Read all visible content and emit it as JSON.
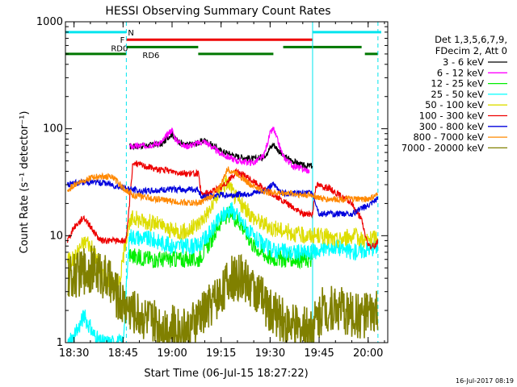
{
  "chart_data": {
    "type": "line",
    "title": "HESSI Observing Summary Count Rates",
    "xlabel": "Start Time (06-Jul-15 18:27:22)",
    "ylabel": "Count Rate (s⁻¹ detector⁻¹)",
    "y_scale": "log",
    "ylim": [
      1,
      1000
    ],
    "xlim": [
      "18:27:22",
      "20:06:00"
    ],
    "x_ticks": [
      "18:30",
      "18:45",
      "19:00",
      "19:15",
      "19:30",
      "19:45",
      "20:00"
    ],
    "y_ticks": [
      "1",
      "10",
      "100",
      "1000"
    ],
    "grid": false,
    "legend_position": "right",
    "legend_header": [
      "Det 1,3,5,6,7,9,",
      "FDecim 2, Att 0"
    ],
    "footer_timestamp": "16-Jul-2017 08:19",
    "background_color": "#ffffff",
    "flags": [
      {
        "label": "N",
        "color": "#00e5ee",
        "level": 800,
        "intervals": [
          [
            "18:27:22",
            "18:46:00"
          ],
          [
            "19:43:00",
            "20:04:00"
          ]
        ]
      },
      {
        "label": "F",
        "color": "#ee0000",
        "level": 680,
        "intervals": [
          [
            "18:46:00",
            "19:43:00"
          ]
        ]
      },
      {
        "label": "RD0",
        "color": "#007700",
        "level": 580,
        "intervals": [
          [
            "18:46:00",
            "19:08:00"
          ],
          [
            "19:34:00",
            "19:58:00"
          ]
        ]
      },
      {
        "label": "RD6",
        "color": "#007700",
        "level": 500,
        "intervals": [
          [
            "18:27:22",
            "18:46:00"
          ],
          [
            "19:08:00",
            "19:31:00"
          ],
          [
            "19:59:00",
            "20:03:00"
          ]
        ]
      }
    ],
    "vertical_markers": [
      {
        "x": "18:46:00",
        "style": "dashed",
        "color": "#00e5ee"
      },
      {
        "x": "19:43:00",
        "style": "solid",
        "color": "#00e5ee"
      },
      {
        "x": "20:03:00",
        "style": "dashed",
        "color": "#00e5ee"
      }
    ],
    "series": [
      {
        "name": "3 - 6 keV",
        "color": "#000000",
        "x": [
          "18:47",
          "18:53",
          "18:57",
          "18:59",
          "19:00",
          "19:01",
          "19:04",
          "19:07",
          "19:10",
          "19:15",
          "19:20",
          "19:25",
          "19:28",
          "19:31",
          "19:34",
          "19:37",
          "19:40",
          "19:43"
        ],
        "values": [
          68,
          70,
          72,
          85,
          90,
          80,
          70,
          72,
          78,
          62,
          55,
          52,
          55,
          72,
          55,
          50,
          45,
          45
        ]
      },
      {
        "name": "6 - 12 keV",
        "color": "#ff00ff",
        "x": [
          "18:47",
          "18:53",
          "18:57",
          "18:59",
          "19:00",
          "19:01",
          "19:04",
          "19:07",
          "19:10",
          "19:15",
          "19:20",
          "19:25",
          "19:28",
          "19:30",
          "19:31",
          "19:34",
          "19:37",
          "19:40",
          "19:42"
        ],
        "values": [
          68,
          70,
          75,
          92,
          98,
          80,
          68,
          72,
          76,
          58,
          50,
          48,
          55,
          90,
          100,
          55,
          45,
          42,
          40
        ]
      },
      {
        "name": "12 - 25 keV",
        "color": "#00ee00",
        "x": [
          "18:47",
          "18:55",
          "19:00",
          "19:05",
          "19:08",
          "19:12",
          "19:15",
          "19:18",
          "19:21",
          "19:25",
          "19:30",
          "19:35",
          "19:40",
          "19:43"
        ],
        "values": [
          6.5,
          6,
          6,
          6,
          6,
          9,
          14,
          16,
          13,
          8,
          6.2,
          6,
          6,
          6
        ]
      },
      {
        "name": "25 - 50 keV",
        "color": "#00ffff",
        "x": [
          "18:28",
          "18:30",
          "18:33",
          "18:36",
          "18:38",
          "18:40",
          "18:42",
          "18:44",
          "18:45",
          "18:47",
          "18:55",
          "19:00",
          "19:05",
          "19:08",
          "19:12",
          "19:15",
          "19:18",
          "19:21",
          "19:25",
          "19:30",
          "19:35",
          "19:40",
          "19:43",
          "19:46",
          "19:50",
          "19:55",
          "20:00",
          "20:03"
        ],
        "values": [
          1,
          1.1,
          1.8,
          1.2,
          1,
          1,
          1,
          1,
          1,
          10,
          9,
          8,
          8,
          8,
          11,
          15,
          18,
          14,
          9.5,
          7.5,
          7,
          7,
          7,
          7.5,
          8,
          7,
          7.5,
          8
        ]
      },
      {
        "name": "50 - 100 keV",
        "color": "#dddd00",
        "x": [
          "18:28",
          "18:30",
          "18:32",
          "18:34",
          "18:36",
          "18:38",
          "18:40",
          "18:42",
          "18:44",
          "18:46",
          "18:48",
          "18:50",
          "18:55",
          "19:00",
          "19:05",
          "19:08",
          "19:12",
          "19:15",
          "19:17",
          "19:19",
          "19:22",
          "19:26",
          "19:30",
          "19:35",
          "19:40",
          "19:43",
          "19:46",
          "19:50",
          "19:55",
          "20:00",
          "20:03"
        ],
        "values": [
          6,
          6,
          8,
          9,
          7,
          5,
          4,
          3.5,
          3.8,
          10,
          15,
          14,
          13,
          11,
          11,
          13,
          18,
          28,
          32,
          24,
          18,
          14,
          12,
          11,
          10,
          10,
          10,
          9,
          10,
          9,
          10
        ]
      },
      {
        "name": "100 - 300 keV",
        "color": "#ee0000",
        "x": [
          "18:28",
          "18:30",
          "18:33",
          "18:36",
          "18:38",
          "18:42",
          "18:46",
          "18:48",
          "18:55",
          "19:00",
          "19:05",
          "19:08",
          "19:09",
          "19:15",
          "19:20",
          "19:25",
          "19:28",
          "19:31",
          "19:35",
          "19:40",
          "19:43",
          "19:44",
          "19:48",
          "19:55",
          "19:58",
          "20:00",
          "20:02",
          "20:03"
        ],
        "values": [
          9,
          12,
          15,
          11,
          9,
          9,
          9,
          48,
          42,
          40,
          38,
          38,
          24,
          28,
          40,
          32,
          28,
          24,
          20,
          16,
          16,
          30,
          28,
          20,
          14,
          8,
          8,
          9
        ]
      },
      {
        "name": "300 - 800 keV",
        "color": "#0000dd",
        "x": [
          "18:28",
          "18:30",
          "18:35",
          "18:40",
          "18:45",
          "18:46",
          "18:50",
          "19:00",
          "19:08",
          "19:09",
          "19:15",
          "19:18",
          "19:25",
          "19:28",
          "19:31",
          "19:34",
          "19:40",
          "19:43",
          "19:45",
          "19:50",
          "19:55",
          "19:58",
          "20:00",
          "20:03"
        ],
        "values": [
          30,
          31,
          32,
          31,
          28,
          28,
          26,
          27,
          27,
          23,
          24,
          24,
          25,
          26,
          30,
          25,
          25,
          25,
          16,
          16,
          16,
          18,
          19,
          22
        ]
      },
      {
        "name": "800 - 7000 keV",
        "color": "#ff8800",
        "x": [
          "18:28",
          "18:30",
          "18:34",
          "18:38",
          "18:42",
          "18:45",
          "18:48",
          "18:55",
          "19:00",
          "19:08",
          "19:12",
          "19:15",
          "19:17",
          "19:20",
          "19:24",
          "19:28",
          "19:32",
          "19:36",
          "19:40",
          "19:43",
          "19:46",
          "19:50",
          "19:55",
          "20:00",
          "20:03"
        ],
        "values": [
          26,
          30,
          34,
          36,
          35,
          28,
          24,
          22,
          21,
          20,
          23,
          30,
          42,
          38,
          30,
          26,
          25,
          25,
          24,
          24,
          22,
          22,
          22,
          22,
          24
        ]
      },
      {
        "name": "7000 - 20000 keV",
        "color": "#808000",
        "x": [
          "18:28",
          "18:32",
          "18:36",
          "18:40",
          "18:44",
          "18:48",
          "18:55",
          "19:00",
          "19:05",
          "19:10",
          "19:15",
          "19:18",
          "19:22",
          "19:26",
          "19:30",
          "19:35",
          "19:40",
          "19:43",
          "19:46",
          "19:50",
          "19:55",
          "20:00",
          "20:03"
        ],
        "values": [
          4,
          4.5,
          5,
          4,
          2.5,
          2,
          1.5,
          1.4,
          1.3,
          2,
          3,
          4,
          4,
          3,
          2,
          1.5,
          1.3,
          1.5,
          2,
          2.2,
          1.8,
          1.8,
          2
        ]
      }
    ]
  }
}
